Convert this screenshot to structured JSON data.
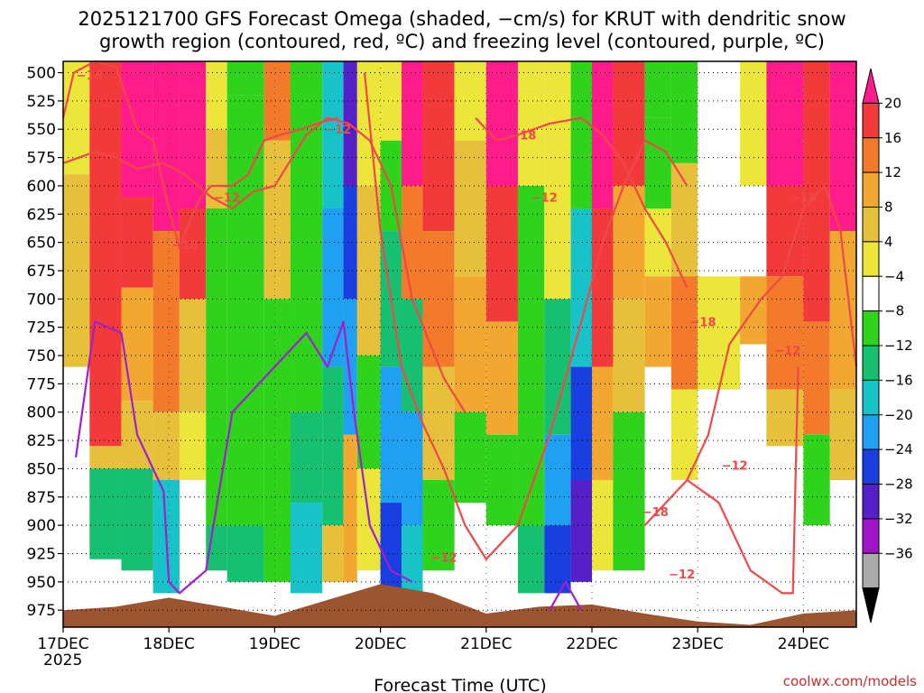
{
  "title_lines": [
    "2025121700 GFS Forecast Omega (shaded, −cm/s) for KRUT with dendritic snow",
    "growth region (contoured, red, ºC) and freezing level (contoured, purple, ºC)"
  ],
  "watermark": "coolwx.com/models",
  "chart_data": {
    "type": "heatmap",
    "xlabel": "Forecast Time (UTC)",
    "x_ticks": [
      "17DEC",
      "18DEC",
      "19DEC",
      "20DEC",
      "21DEC",
      "22DEC",
      "23DEC",
      "24DEC"
    ],
    "x_year_label": "2025",
    "y_ticks": [
      500,
      525,
      550,
      575,
      600,
      625,
      650,
      675,
      700,
      725,
      750,
      775,
      800,
      825,
      850,
      875,
      900,
      925,
      950,
      975
    ],
    "y_reversed": true,
    "xlim_days": [
      0,
      7.5
    ],
    "ylim": [
      490,
      990
    ],
    "grid": true,
    "colorbar": {
      "ticks": [
        20,
        16,
        12,
        8,
        4,
        -4,
        -8,
        -12,
        -16,
        -20,
        -24,
        -28,
        -32,
        -36
      ],
      "bins": [
        {
          "color": "#ff1c8a"
        },
        {
          "color": "#f23a3a"
        },
        {
          "color": "#f27a2a"
        },
        {
          "color": "#f2a830"
        },
        {
          "color": "#e6c03a"
        },
        {
          "color": "#ece63a"
        },
        {
          "color": "#ffffff"
        },
        {
          "color": "#2fd31c"
        },
        {
          "color": "#17c070"
        },
        {
          "color": "#17c3c8"
        },
        {
          "color": "#1fa0f0"
        },
        {
          "color": "#1a3fe0"
        },
        {
          "color": "#5520c8"
        },
        {
          "color": "#a013c8"
        },
        {
          "color": "#aaaaaa"
        },
        {
          "color": "#000000"
        }
      ]
    },
    "omega_columns": [
      {
        "x0": 0.0,
        "x1": 0.25,
        "bands": [
          [
            490,
            590,
            5
          ],
          [
            590,
            760,
            4
          ]
        ]
      },
      {
        "x0": 0.25,
        "x1": 0.55,
        "bands": [
          [
            490,
            830,
            1
          ],
          [
            830,
            850,
            4
          ],
          [
            850,
            930,
            8
          ]
        ]
      },
      {
        "x0": 0.55,
        "x1": 0.85,
        "bands": [
          [
            490,
            610,
            0
          ],
          [
            610,
            690,
            1
          ],
          [
            690,
            790,
            3
          ],
          [
            790,
            850,
            4
          ],
          [
            850,
            940,
            8
          ]
        ]
      },
      {
        "x0": 0.85,
        "x1": 1.1,
        "bands": [
          [
            490,
            640,
            0
          ],
          [
            640,
            800,
            2
          ],
          [
            800,
            860,
            4
          ],
          [
            860,
            960,
            9
          ]
        ]
      },
      {
        "x0": 1.1,
        "x1": 1.35,
        "bands": [
          [
            490,
            620,
            0
          ],
          [
            620,
            700,
            1
          ],
          [
            700,
            800,
            4
          ],
          [
            800,
            860,
            5
          ]
        ]
      },
      {
        "x0": 1.35,
        "x1": 1.55,
        "bands": [
          [
            490,
            550,
            5
          ],
          [
            550,
            620,
            4
          ],
          [
            620,
            900,
            7
          ],
          [
            900,
            940,
            8
          ]
        ]
      },
      {
        "x0": 1.55,
        "x1": 1.9,
        "bands": [
          [
            490,
            520,
            7
          ],
          [
            520,
            900,
            7
          ],
          [
            900,
            950,
            8
          ]
        ]
      },
      {
        "x0": 1.9,
        "x1": 2.15,
        "bands": [
          [
            490,
            560,
            2
          ],
          [
            560,
            700,
            4
          ],
          [
            700,
            950,
            7
          ]
        ]
      },
      {
        "x0": 2.15,
        "x1": 2.45,
        "bands": [
          [
            490,
            800,
            7
          ],
          [
            800,
            880,
            8
          ],
          [
            880,
            960,
            9
          ]
        ]
      },
      {
        "x0": 2.45,
        "x1": 2.65,
        "bands": [
          [
            490,
            620,
            9
          ],
          [
            620,
            760,
            10
          ],
          [
            760,
            900,
            8
          ],
          [
            900,
            950,
            4
          ]
        ]
      },
      {
        "x0": 2.65,
        "x1": 2.78,
        "bands": [
          [
            490,
            600,
            12
          ],
          [
            600,
            700,
            11
          ],
          [
            700,
            820,
            10
          ],
          [
            820,
            950,
            3
          ]
        ]
      },
      {
        "x0": 2.78,
        "x1": 3.0,
        "bands": [
          [
            490,
            600,
            5
          ],
          [
            600,
            750,
            4
          ],
          [
            750,
            850,
            7
          ],
          [
            850,
            940,
            5
          ]
        ]
      },
      {
        "x0": 3.0,
        "x1": 3.2,
        "bands": [
          [
            490,
            560,
            5
          ],
          [
            560,
            640,
            7
          ],
          [
            640,
            760,
            8
          ],
          [
            760,
            880,
            10
          ],
          [
            880,
            960,
            11
          ]
        ]
      },
      {
        "x0": 3.2,
        "x1": 3.4,
        "bands": [
          [
            490,
            600,
            0
          ],
          [
            600,
            700,
            2
          ],
          [
            700,
            800,
            8
          ],
          [
            800,
            900,
            10
          ],
          [
            900,
            960,
            9
          ]
        ]
      },
      {
        "x0": 3.4,
        "x1": 3.7,
        "bands": [
          [
            490,
            640,
            1
          ],
          [
            640,
            760,
            2
          ],
          [
            760,
            860,
            4
          ],
          [
            860,
            940,
            7
          ]
        ]
      },
      {
        "x0": 3.7,
        "x1": 4.0,
        "bands": [
          [
            490,
            560,
            5
          ],
          [
            560,
            680,
            4
          ],
          [
            680,
            800,
            3
          ],
          [
            800,
            880,
            7
          ]
        ]
      },
      {
        "x0": 4.0,
        "x1": 4.3,
        "bands": [
          [
            490,
            600,
            0
          ],
          [
            600,
            720,
            1
          ],
          [
            720,
            820,
            3
          ],
          [
            820,
            900,
            7
          ]
        ]
      },
      {
        "x0": 4.3,
        "x1": 4.55,
        "bands": [
          [
            490,
            600,
            5
          ],
          [
            600,
            900,
            7
          ],
          [
            900,
            960,
            8
          ]
        ]
      },
      {
        "x0": 4.55,
        "x1": 4.8,
        "bands": [
          [
            490,
            700,
            5
          ],
          [
            700,
            820,
            8
          ],
          [
            820,
            900,
            10
          ],
          [
            900,
            960,
            11
          ]
        ]
      },
      {
        "x0": 4.8,
        "x1": 5.0,
        "bands": [
          [
            490,
            620,
            7
          ],
          [
            620,
            760,
            9
          ],
          [
            760,
            860,
            11
          ],
          [
            860,
            950,
            12
          ]
        ]
      },
      {
        "x0": 5.0,
        "x1": 5.2,
        "bands": [
          [
            490,
            620,
            0
          ],
          [
            620,
            760,
            1
          ],
          [
            760,
            860,
            3
          ],
          [
            860,
            940,
            5
          ]
        ]
      },
      {
        "x0": 5.2,
        "x1": 5.5,
        "bands": [
          [
            490,
            600,
            1
          ],
          [
            600,
            700,
            3
          ],
          [
            700,
            800,
            4
          ],
          [
            800,
            940,
            7
          ]
        ]
      },
      {
        "x0": 5.5,
        "x1": 5.75,
        "bands": [
          [
            490,
            540,
            7
          ],
          [
            540,
            620,
            7
          ],
          [
            620,
            680,
            5
          ],
          [
            680,
            760,
            3
          ]
        ]
      },
      {
        "x0": 5.75,
        "x1": 6.0,
        "bands": [
          [
            490,
            580,
            7
          ],
          [
            580,
            680,
            4
          ],
          [
            680,
            780,
            2
          ],
          [
            780,
            860,
            5
          ]
        ]
      },
      {
        "x0": 6.0,
        "x1": 6.4,
        "bands": [
          [
            490,
            680,
            6
          ],
          [
            680,
            780,
            5
          ],
          [
            780,
            860,
            6
          ]
        ]
      },
      {
        "x0": 6.4,
        "x1": 6.65,
        "bands": [
          [
            490,
            600,
            5
          ],
          [
            600,
            680,
            6
          ],
          [
            680,
            740,
            3
          ]
        ]
      },
      {
        "x0": 6.65,
        "x1": 7.0,
        "bands": [
          [
            490,
            600,
            0
          ],
          [
            600,
            680,
            1
          ],
          [
            680,
            780,
            2
          ],
          [
            780,
            830,
            4
          ]
        ]
      },
      {
        "x0": 7.0,
        "x1": 7.25,
        "bands": [
          [
            490,
            720,
            1
          ],
          [
            720,
            820,
            2
          ],
          [
            820,
            900,
            7
          ]
        ]
      },
      {
        "x0": 7.25,
        "x1": 7.5,
        "bands": [
          [
            490,
            640,
            0
          ],
          [
            640,
            780,
            3
          ],
          [
            780,
            860,
            4
          ]
        ]
      }
    ],
    "terrain": {
      "color": "#9b5530",
      "x": [
        0,
        0.5,
        1.0,
        1.5,
        2.0,
        2.5,
        3.0,
        3.5,
        4.0,
        4.5,
        5.0,
        5.5,
        6.0,
        6.5,
        7.0,
        7.5
      ],
      "p": [
        975,
        972,
        964,
        972,
        980,
        966,
        952,
        960,
        978,
        972,
        970,
        978,
        985,
        988,
        978,
        975
      ]
    },
    "contours": [
      {
        "label": "-18",
        "color": "#f04848",
        "x": [
          0.0,
          0.1,
          0.3,
          0.5,
          0.7,
          0.85,
          1.0,
          1.1,
          1.2,
          1.3,
          1.4,
          1.6,
          1.75,
          1.9,
          2.05,
          2.25,
          2.4,
          2.6
        ],
        "p": [
          540,
          500,
          490,
          495,
          550,
          560,
          620,
          655,
          630,
          610,
          600,
          600,
          590,
          560,
          555,
          550,
          545,
          540
        ]
      },
      {
        "label": "-12",
        "color": "#f04848",
        "x": [
          0.0,
          0.15,
          0.3,
          0.5,
          0.7,
          0.95,
          1.15,
          1.4,
          1.6,
          1.8,
          2.0,
          2.3,
          2.5,
          2.7,
          2.9,
          3.1,
          3.3,
          3.6,
          3.8
        ],
        "p": [
          580,
          575,
          570,
          575,
          585,
          580,
          590,
          610,
          620,
          605,
          600,
          555,
          540,
          545,
          560,
          600,
          700,
          770,
          800
        ]
      },
      {
        "label": "-12",
        "color": "#f04848",
        "x": [
          2.85,
          3.0,
          3.2,
          3.4,
          3.6,
          3.8,
          4.0,
          4.3,
          4.6,
          4.9,
          5.1,
          5.3,
          5.5,
          5.7,
          5.9
        ],
        "p": [
          500,
          640,
          760,
          810,
          850,
          900,
          930,
          900,
          820,
          720,
          650,
          600,
          560,
          570,
          600
        ]
      },
      {
        "label": "-18",
        "color": "#f04848",
        "x": [
          3.9,
          4.1,
          4.3,
          4.6,
          4.9,
          5.1,
          5.3,
          5.5,
          5.7,
          5.9
        ],
        "p": [
          540,
          560,
          555,
          545,
          540,
          555,
          580,
          620,
          650,
          690
        ]
      },
      {
        "label": "-18",
        "color": "#f04848",
        "x": [
          5.9,
          6.1,
          6.3,
          6.6,
          6.8,
          7.0,
          7.2,
          7.35,
          7.5
        ],
        "p": [
          860,
          820,
          740,
          700,
          680,
          620,
          600,
          640,
          760
        ]
      },
      {
        "label": "-12",
        "color": "#f04848",
        "x": [
          5.5,
          5.7,
          5.9,
          6.2,
          6.5,
          6.8,
          6.9,
          6.95
        ],
        "p": [
          900,
          880,
          860,
          880,
          940,
          960,
          960,
          760
        ]
      },
      {
        "label": "",
        "color": "#a020d0",
        "x": [
          0.12,
          0.3,
          0.55,
          0.7,
          0.8,
          0.95,
          1.0,
          1.1,
          1.35,
          1.6,
          1.9,
          2.1,
          2.3,
          2.5,
          2.65,
          2.7,
          2.75
        ],
        "p": [
          840,
          720,
          730,
          820,
          840,
          870,
          950,
          960,
          940,
          800,
          770,
          750,
          730,
          760,
          720,
          760,
          800
        ]
      },
      {
        "label": "",
        "color": "#a020d0",
        "x": [
          2.75,
          2.9,
          3.1,
          3.3
        ],
        "p": [
          800,
          900,
          940,
          950
        ]
      },
      {
        "label": "",
        "color": "#a020d0",
        "x": [
          4.6,
          4.75,
          4.9
        ],
        "p": [
          975,
          950,
          975
        ]
      }
    ],
    "contour_labels": [
      {
        "text": "-18",
        "color": "#f04848",
        "x": 0.25,
        "p": 502
      },
      {
        "text": "-12",
        "color": "#f04848",
        "x": 2.6,
        "p": 550
      },
      {
        "text": "-18",
        "color": "#f04848",
        "x": 4.35,
        "p": 555
      },
      {
        "text": "-12",
        "color": "#f04848",
        "x": 1.55,
        "p": 610
      },
      {
        "text": "-18",
        "color": "#f04848",
        "x": 1.15,
        "p": 652
      },
      {
        "text": "-12",
        "color": "#f04848",
        "x": 4.55,
        "p": 610
      },
      {
        "text": "-18",
        "color": "#f04848",
        "x": 7.0,
        "p": 610
      },
      {
        "text": "-18",
        "color": "#f04848",
        "x": 6.05,
        "p": 720
      },
      {
        "text": "-12",
        "color": "#f04848",
        "x": 6.85,
        "p": 745
      },
      {
        "text": "-12",
        "color": "#f04848",
        "x": 3.6,
        "p": 928
      },
      {
        "text": "-18",
        "color": "#f04848",
        "x": 5.6,
        "p": 888
      },
      {
        "text": "-12",
        "color": "#f04848",
        "x": 6.35,
        "p": 847
      },
      {
        "text": "-12",
        "color": "#f04848",
        "x": 5.85,
        "p": 943
      }
    ]
  }
}
